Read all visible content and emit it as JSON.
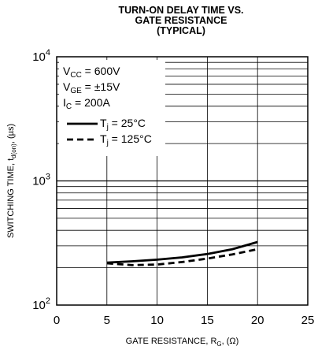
{
  "chart_data": {
    "type": "line",
    "title": [
      "TURN-ON DELAY TIME VS.",
      "GATE RESISTANCE",
      "(TYPICAL)"
    ],
    "xlabel": {
      "main": "GATE RESISTANCE, R",
      "sub": "G",
      "tail": ", (Ω)"
    },
    "ylabel": {
      "main": "SWITCHING TIME, t",
      "sub": "d(on)",
      "tail": ", (µs)"
    },
    "xlim": [
      0,
      25
    ],
    "x_ticks": [
      "0",
      "5",
      "10",
      "15",
      "20",
      "25"
    ],
    "ylim": [
      100,
      10000
    ],
    "y_scale": "log",
    "y_ticks": [
      {
        "value": 100,
        "base": "10",
        "exp": "2"
      },
      {
        "value": 1000,
        "base": "10",
        "exp": "3"
      },
      {
        "value": 10000,
        "base": "10",
        "exp": "4"
      }
    ],
    "grid": true,
    "conditions": [
      {
        "main": "V",
        "sub": "CC",
        "tail": " = 600V"
      },
      {
        "main": "V",
        "sub": "GE",
        "tail": " = ±15V"
      },
      {
        "main": "I",
        "sub": "C",
        "tail": " = 200A"
      }
    ],
    "series": [
      {
        "name": {
          "main": "T",
          "sub": "j",
          "tail": " = 25°C"
        },
        "style": "solid",
        "x": [
          5,
          7.5,
          10,
          12.5,
          15,
          17.5,
          20
        ],
        "y": [
          220,
          225,
          232,
          242,
          258,
          282,
          322
        ]
      },
      {
        "name": {
          "main": "T",
          "sub": "j",
          "tail": " = 125°C"
        },
        "style": "dashed",
        "x": [
          5,
          7.5,
          10,
          12.5,
          15,
          17.5,
          20
        ],
        "y": [
          217,
          210,
          212,
          222,
          237,
          256,
          282
        ]
      }
    ],
    "legend_position": "top-left"
  },
  "colors": {
    "line": "#000000",
    "grid": "#000000",
    "background": "#ffffff"
  }
}
